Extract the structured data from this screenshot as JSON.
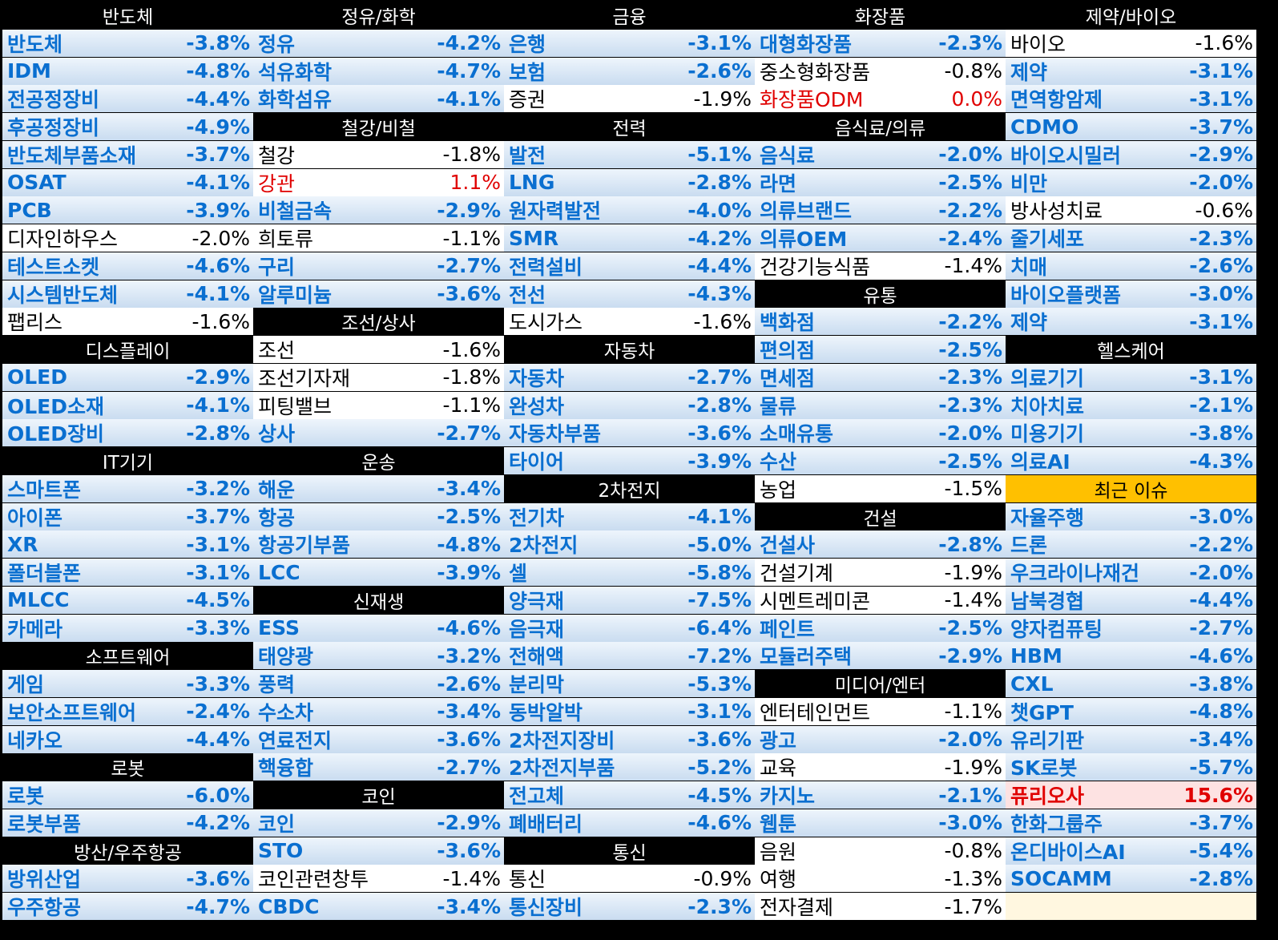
{
  "columns": [
    [
      {
        "type": "header",
        "label": "반도체"
      },
      {
        "type": "row",
        "name": "반도체",
        "pct": "-3.8%",
        "style": "cool"
      },
      {
        "type": "row",
        "name": "IDM",
        "pct": "-4.8%",
        "style": "cool"
      },
      {
        "type": "row",
        "name": "전공정장비",
        "pct": "-4.4%",
        "style": "cool"
      },
      {
        "type": "row",
        "name": "후공정장비",
        "pct": "-4.9%",
        "style": "cool"
      },
      {
        "type": "row",
        "name": "반도체부품소재",
        "pct": "-3.7%",
        "style": "cool"
      },
      {
        "type": "row",
        "name": "OSAT",
        "pct": "-4.1%",
        "style": "cool"
      },
      {
        "type": "row",
        "name": "PCB",
        "pct": "-3.9%",
        "style": "cool"
      },
      {
        "type": "row",
        "name": "디자인하우스",
        "pct": "-2.0%",
        "style": "mild"
      },
      {
        "type": "row",
        "name": "테스트소켓",
        "pct": "-4.6%",
        "style": "cool"
      },
      {
        "type": "row",
        "name": "시스템반도체",
        "pct": "-4.1%",
        "style": "cool"
      },
      {
        "type": "row",
        "name": "팹리스",
        "pct": "-1.6%",
        "style": "mild"
      },
      {
        "type": "header",
        "label": "디스플레이"
      },
      {
        "type": "row",
        "name": "OLED",
        "pct": "-2.9%",
        "style": "cool"
      },
      {
        "type": "row",
        "name": "OLED소재",
        "pct": "-4.1%",
        "style": "cool"
      },
      {
        "type": "row",
        "name": "OLED장비",
        "pct": "-2.8%",
        "style": "cool"
      },
      {
        "type": "header",
        "label": "IT기기"
      },
      {
        "type": "row",
        "name": "스마트폰",
        "pct": "-3.2%",
        "style": "cool"
      },
      {
        "type": "row",
        "name": "아이폰",
        "pct": "-3.7%",
        "style": "cool"
      },
      {
        "type": "row",
        "name": "XR",
        "pct": "-3.1%",
        "style": "cool"
      },
      {
        "type": "row",
        "name": "폴더블폰",
        "pct": "-3.1%",
        "style": "cool"
      },
      {
        "type": "row",
        "name": "MLCC",
        "pct": "-4.5%",
        "style": "cool"
      },
      {
        "type": "row",
        "name": "카메라",
        "pct": "-3.3%",
        "style": "cool"
      },
      {
        "type": "header",
        "label": "소프트웨어"
      },
      {
        "type": "row",
        "name": "게임",
        "pct": "-3.3%",
        "style": "cool"
      },
      {
        "type": "row",
        "name": "보안소프트웨어",
        "pct": "-2.4%",
        "style": "cool"
      },
      {
        "type": "row",
        "name": "네카오",
        "pct": "-4.4%",
        "style": "cool"
      },
      {
        "type": "header",
        "label": "로봇"
      },
      {
        "type": "row",
        "name": "로봇",
        "pct": "-6.0%",
        "style": "cool"
      },
      {
        "type": "row",
        "name": "로봇부품",
        "pct": "-4.2%",
        "style": "cool"
      },
      {
        "type": "header",
        "label": "방산/우주항공"
      },
      {
        "type": "row",
        "name": "방위산업",
        "pct": "-3.6%",
        "style": "cool"
      },
      {
        "type": "row",
        "name": "우주항공",
        "pct": "-4.7%",
        "style": "cool"
      }
    ],
    [
      {
        "type": "header",
        "label": "정유/화학"
      },
      {
        "type": "row",
        "name": "정유",
        "pct": "-4.2%",
        "style": "cool"
      },
      {
        "type": "row",
        "name": "석유화학",
        "pct": "-4.7%",
        "style": "cool"
      },
      {
        "type": "row",
        "name": "화학섬유",
        "pct": "-4.1%",
        "style": "cool"
      },
      {
        "type": "header",
        "label": "철강/비철"
      },
      {
        "type": "row",
        "name": "철강",
        "pct": "-1.8%",
        "style": "mild"
      },
      {
        "type": "row",
        "name": "강관",
        "pct": "1.1%",
        "style": "up"
      },
      {
        "type": "row",
        "name": "비철금속",
        "pct": "-2.9%",
        "style": "cool"
      },
      {
        "type": "row",
        "name": "희토류",
        "pct": "-1.1%",
        "style": "mild"
      },
      {
        "type": "row",
        "name": "구리",
        "pct": "-2.7%",
        "style": "cool"
      },
      {
        "type": "row",
        "name": "알루미늄",
        "pct": "-3.6%",
        "style": "cool"
      },
      {
        "type": "header",
        "label": "조선/상사"
      },
      {
        "type": "row",
        "name": "조선",
        "pct": "-1.6%",
        "style": "mild"
      },
      {
        "type": "row",
        "name": "조선기자재",
        "pct": "-1.8%",
        "style": "mild"
      },
      {
        "type": "row",
        "name": "피팅밸브",
        "pct": "-1.1%",
        "style": "mild"
      },
      {
        "type": "row",
        "name": "상사",
        "pct": "-2.7%",
        "style": "cool"
      },
      {
        "type": "header",
        "label": "운송"
      },
      {
        "type": "row",
        "name": "해운",
        "pct": "-3.4%",
        "style": "cool"
      },
      {
        "type": "row",
        "name": "항공",
        "pct": "-2.5%",
        "style": "cool"
      },
      {
        "type": "row",
        "name": "항공기부품",
        "pct": "-4.8%",
        "style": "cool"
      },
      {
        "type": "row",
        "name": "LCC",
        "pct": "-3.9%",
        "style": "cool"
      },
      {
        "type": "header",
        "label": "신재생"
      },
      {
        "type": "row",
        "name": "ESS",
        "pct": "-4.6%",
        "style": "cool"
      },
      {
        "type": "row",
        "name": "태양광",
        "pct": "-3.2%",
        "style": "cool"
      },
      {
        "type": "row",
        "name": "풍력",
        "pct": "-2.6%",
        "style": "cool"
      },
      {
        "type": "row",
        "name": "수소차",
        "pct": "-3.4%",
        "style": "cool"
      },
      {
        "type": "row",
        "name": "연료전지",
        "pct": "-3.6%",
        "style": "cool"
      },
      {
        "type": "row",
        "name": "핵융합",
        "pct": "-2.7%",
        "style": "cool"
      },
      {
        "type": "header",
        "label": "코인"
      },
      {
        "type": "row",
        "name": "코인",
        "pct": "-2.9%",
        "style": "cool"
      },
      {
        "type": "row",
        "name": "STO",
        "pct": "-3.6%",
        "style": "cool"
      },
      {
        "type": "row",
        "name": "코인관련창투",
        "pct": "-1.4%",
        "style": "mild"
      },
      {
        "type": "row",
        "name": "CBDC",
        "pct": "-3.4%",
        "style": "cool"
      }
    ],
    [
      {
        "type": "header",
        "label": "금융"
      },
      {
        "type": "row",
        "name": "은행",
        "pct": "-3.1%",
        "style": "cool"
      },
      {
        "type": "row",
        "name": "보험",
        "pct": "-2.6%",
        "style": "cool"
      },
      {
        "type": "row",
        "name": "증권",
        "pct": "-1.9%",
        "style": "mild"
      },
      {
        "type": "header",
        "label": "전력"
      },
      {
        "type": "row",
        "name": "발전",
        "pct": "-5.1%",
        "style": "cool"
      },
      {
        "type": "row",
        "name": "LNG",
        "pct": "-2.8%",
        "style": "cool"
      },
      {
        "type": "row",
        "name": "원자력발전",
        "pct": "-4.0%",
        "style": "cool"
      },
      {
        "type": "row",
        "name": "SMR",
        "pct": "-4.2%",
        "style": "cool"
      },
      {
        "type": "row",
        "name": "전력설비",
        "pct": "-4.4%",
        "style": "cool"
      },
      {
        "type": "row",
        "name": "전선",
        "pct": "-4.3%",
        "style": "cool"
      },
      {
        "type": "row",
        "name": "도시가스",
        "pct": "-1.6%",
        "style": "mild"
      },
      {
        "type": "header",
        "label": "자동차"
      },
      {
        "type": "row",
        "name": "자동차",
        "pct": "-2.7%",
        "style": "cool"
      },
      {
        "type": "row",
        "name": "완성차",
        "pct": "-2.8%",
        "style": "cool"
      },
      {
        "type": "row",
        "name": "자동차부품",
        "pct": "-3.6%",
        "style": "cool"
      },
      {
        "type": "row",
        "name": "타이어",
        "pct": "-3.9%",
        "style": "cool"
      },
      {
        "type": "header",
        "label": "2차전지"
      },
      {
        "type": "row",
        "name": "전기차",
        "pct": "-4.1%",
        "style": "cool"
      },
      {
        "type": "row",
        "name": "2차전지",
        "pct": "-5.0%",
        "style": "cool"
      },
      {
        "type": "row",
        "name": "셀",
        "pct": "-5.8%",
        "style": "cool"
      },
      {
        "type": "row",
        "name": "양극재",
        "pct": "-7.5%",
        "style": "cool"
      },
      {
        "type": "row",
        "name": "음극재",
        "pct": "-6.4%",
        "style": "cool"
      },
      {
        "type": "row",
        "name": "전해액",
        "pct": "-7.2%",
        "style": "cool"
      },
      {
        "type": "row",
        "name": "분리막",
        "pct": "-5.3%",
        "style": "cool"
      },
      {
        "type": "row",
        "name": "동박알박",
        "pct": "-3.1%",
        "style": "cool"
      },
      {
        "type": "row",
        "name": "2차전지장비",
        "pct": "-3.6%",
        "style": "cool"
      },
      {
        "type": "row",
        "name": "2차전지부품",
        "pct": "-5.2%",
        "style": "cool"
      },
      {
        "type": "row",
        "name": "전고체",
        "pct": "-4.5%",
        "style": "cool"
      },
      {
        "type": "row",
        "name": "폐배터리",
        "pct": "-4.6%",
        "style": "cool"
      },
      {
        "type": "header",
        "label": "통신"
      },
      {
        "type": "row",
        "name": "통신",
        "pct": "-0.9%",
        "style": "mild"
      },
      {
        "type": "row",
        "name": "통신장비",
        "pct": "-2.3%",
        "style": "cool"
      }
    ],
    [
      {
        "type": "header",
        "label": "화장품"
      },
      {
        "type": "row",
        "name": "대형화장품",
        "pct": "-2.3%",
        "style": "cool"
      },
      {
        "type": "row",
        "name": "중소형화장품",
        "pct": "-0.8%",
        "style": "mild"
      },
      {
        "type": "row",
        "name": "화장품ODM",
        "pct": "0.0%",
        "style": "up"
      },
      {
        "type": "header",
        "label": "음식료/의류"
      },
      {
        "type": "row",
        "name": "음식료",
        "pct": "-2.0%",
        "style": "cool"
      },
      {
        "type": "row",
        "name": "라면",
        "pct": "-2.5%",
        "style": "cool"
      },
      {
        "type": "row",
        "name": "의류브랜드",
        "pct": "-2.2%",
        "style": "cool"
      },
      {
        "type": "row",
        "name": "의류OEM",
        "pct": "-2.4%",
        "style": "cool"
      },
      {
        "type": "row",
        "name": "건강기능식품",
        "pct": "-1.4%",
        "style": "mild"
      },
      {
        "type": "header",
        "label": "유통"
      },
      {
        "type": "row",
        "name": "백화점",
        "pct": "-2.2%",
        "style": "cool"
      },
      {
        "type": "row",
        "name": "편의점",
        "pct": "-2.5%",
        "style": "cool"
      },
      {
        "type": "row",
        "name": "면세점",
        "pct": "-2.3%",
        "style": "cool"
      },
      {
        "type": "row",
        "name": "물류",
        "pct": "-2.3%",
        "style": "cool"
      },
      {
        "type": "row",
        "name": "소매유통",
        "pct": "-2.0%",
        "style": "cool"
      },
      {
        "type": "row",
        "name": "수산",
        "pct": "-2.5%",
        "style": "cool"
      },
      {
        "type": "row",
        "name": "농업",
        "pct": "-1.5%",
        "style": "mild"
      },
      {
        "type": "header",
        "label": "건설"
      },
      {
        "type": "row",
        "name": "건설사",
        "pct": "-2.8%",
        "style": "cool"
      },
      {
        "type": "row",
        "name": "건설기계",
        "pct": "-1.9%",
        "style": "mild"
      },
      {
        "type": "row",
        "name": "시멘트레미콘",
        "pct": "-1.4%",
        "style": "mild"
      },
      {
        "type": "row",
        "name": "페인트",
        "pct": "-2.5%",
        "style": "cool"
      },
      {
        "type": "row",
        "name": "모듈러주택",
        "pct": "-2.9%",
        "style": "cool"
      },
      {
        "type": "header",
        "label": "미디어/엔터"
      },
      {
        "type": "row",
        "name": "엔터테인먼트",
        "pct": "-1.1%",
        "style": "mild"
      },
      {
        "type": "row",
        "name": "광고",
        "pct": "-2.0%",
        "style": "cool"
      },
      {
        "type": "row",
        "name": "교육",
        "pct": "-1.9%",
        "style": "mild"
      },
      {
        "type": "row",
        "name": "카지노",
        "pct": "-2.1%",
        "style": "cool"
      },
      {
        "type": "row",
        "name": "웹툰",
        "pct": "-3.0%",
        "style": "cool"
      },
      {
        "type": "row",
        "name": "음원",
        "pct": "-0.8%",
        "style": "mild"
      },
      {
        "type": "row",
        "name": "여행",
        "pct": "-1.3%",
        "style": "mild"
      },
      {
        "type": "row",
        "name": "전자결제",
        "pct": "-1.7%",
        "style": "mild"
      }
    ],
    [
      {
        "type": "header",
        "label": "제약/바이오"
      },
      {
        "type": "row",
        "name": "바이오",
        "pct": "-1.6%",
        "style": "mild"
      },
      {
        "type": "row",
        "name": "제약",
        "pct": "-3.1%",
        "style": "cool"
      },
      {
        "type": "row",
        "name": "면역항암제",
        "pct": "-3.1%",
        "style": "cool"
      },
      {
        "type": "row",
        "name": "CDMO",
        "pct": "-3.7%",
        "style": "cool"
      },
      {
        "type": "row",
        "name": "바이오시밀러",
        "pct": "-2.9%",
        "style": "cool"
      },
      {
        "type": "row",
        "name": "비만",
        "pct": "-2.0%",
        "style": "cool"
      },
      {
        "type": "row",
        "name": "방사성치료",
        "pct": "-0.6%",
        "style": "mild"
      },
      {
        "type": "row",
        "name": "줄기세포",
        "pct": "-2.3%",
        "style": "cool"
      },
      {
        "type": "row",
        "name": "치매",
        "pct": "-2.6%",
        "style": "cool"
      },
      {
        "type": "row",
        "name": "바이오플랫폼",
        "pct": "-3.0%",
        "style": "cool"
      },
      {
        "type": "row",
        "name": "제약",
        "pct": "-3.1%",
        "style": "cool"
      },
      {
        "type": "header",
        "label": "헬스케어"
      },
      {
        "type": "row",
        "name": "의료기기",
        "pct": "-3.1%",
        "style": "cool"
      },
      {
        "type": "row",
        "name": "치아치료",
        "pct": "-2.1%",
        "style": "cool"
      },
      {
        "type": "row",
        "name": "미용기기",
        "pct": "-3.8%",
        "style": "cool"
      },
      {
        "type": "row",
        "name": "의료AI",
        "pct": "-4.3%",
        "style": "cool"
      },
      {
        "type": "header",
        "label": "최근 이슈",
        "style": "issue"
      },
      {
        "type": "row",
        "name": "자율주행",
        "pct": "-3.0%",
        "style": "cool"
      },
      {
        "type": "row",
        "name": "드론",
        "pct": "-2.2%",
        "style": "cool"
      },
      {
        "type": "row",
        "name": "우크라이나재건",
        "pct": "-2.0%",
        "style": "cool"
      },
      {
        "type": "row",
        "name": "남북경협",
        "pct": "-4.4%",
        "style": "cool"
      },
      {
        "type": "row",
        "name": "양자컴퓨팅",
        "pct": "-2.7%",
        "style": "cool"
      },
      {
        "type": "row",
        "name": "HBM",
        "pct": "-4.6%",
        "style": "cool"
      },
      {
        "type": "row",
        "name": "CXL",
        "pct": "-3.8%",
        "style": "cool"
      },
      {
        "type": "row",
        "name": "챗GPT",
        "pct": "-4.8%",
        "style": "cool"
      },
      {
        "type": "row",
        "name": "유리기판",
        "pct": "-3.4%",
        "style": "cool"
      },
      {
        "type": "row",
        "name": "SK로봇",
        "pct": "-5.7%",
        "style": "cool"
      },
      {
        "type": "row",
        "name": "퓨리오사",
        "pct": "15.6%",
        "style": "hot"
      },
      {
        "type": "row",
        "name": "한화그룹주",
        "pct": "-3.7%",
        "style": "cool"
      },
      {
        "type": "row",
        "name": "온디바이스AI",
        "pct": "-5.4%",
        "style": "cool"
      },
      {
        "type": "row",
        "name": "SOCAMM",
        "pct": "-2.8%",
        "style": "cool"
      },
      {
        "type": "row",
        "name": "",
        "pct": "",
        "style": "empty"
      }
    ]
  ]
}
